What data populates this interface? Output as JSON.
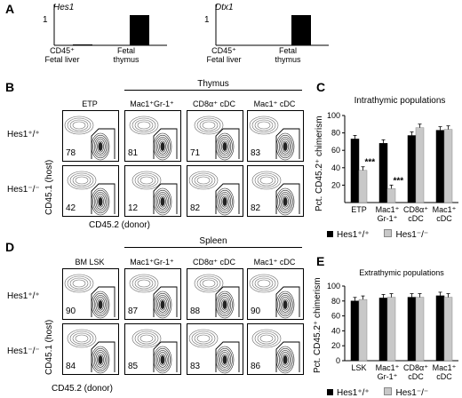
{
  "panels": {
    "A": "A",
    "B": "B",
    "C": "C",
    "D": "D",
    "E": "E"
  },
  "panel_a": {
    "charts": [
      {
        "gene": "Hes1",
        "ytick": "1",
        "bars": [
          {
            "label_line1": "CD45⁺",
            "label_line2": "Fetal liver",
            "value": 0.02
          },
          {
            "label_line1": "Fetal",
            "label_line2": "thymus",
            "value": 1.0
          }
        ]
      },
      {
        "gene": "Dtx1",
        "ytick": "1",
        "bars": [
          {
            "label_line1": "CD45⁺",
            "label_line2": "Fetal liver",
            "value": 0.0
          },
          {
            "label_line1": "Fetal",
            "label_line2": "thymus",
            "value": 1.0
          }
        ]
      }
    ]
  },
  "panel_b": {
    "tissue": "Thymus",
    "columns": [
      "ETP",
      "Mac1⁺Gr-1⁺",
      "CD8α⁺ cDC",
      "Mac1⁺ cDC"
    ],
    "rows": [
      "Hes1⁺/⁺",
      "Hes1⁻/⁻"
    ],
    "percents": [
      [
        "78",
        "81",
        "71",
        "83"
      ],
      [
        "42",
        "12",
        "82",
        "82"
      ]
    ],
    "y_axis": "CD45.1 (host)",
    "x_axis": "CD45.2 (donor)"
  },
  "panel_d": {
    "tissue": "Spleen",
    "columns": [
      "BM LSK",
      "Mac1⁺Gr-1⁺",
      "CD8α⁺ cDC",
      "Mac1⁺ cDC"
    ],
    "rows": [
      "Hes1⁺/⁺",
      "Hes1⁻/⁻"
    ],
    "percents": [
      [
        "90",
        "87",
        "88",
        "90"
      ],
      [
        "84",
        "85",
        "83",
        "86"
      ]
    ],
    "y_axis": "CD45.1 (host)",
    "x_axis": "CD45.2 (donor)"
  },
  "chart_data": [
    {
      "type": "bar",
      "title": "Intrathymic populations",
      "ylabel": "Pct. CD45.2⁺ chimerism",
      "ylim": [
        0,
        100
      ],
      "yticks": [
        20,
        40,
        60,
        80,
        100
      ],
      "categories": [
        "ETP",
        "Mac1⁺ Gr-1⁺",
        "CD8α⁺ cDC",
        "Mac1⁺ cDC"
      ],
      "series": [
        {
          "name": "Hes1⁺/⁺",
          "color": "#000000",
          "values": [
            73,
            68,
            77,
            83
          ]
        },
        {
          "name": "Hes1⁻/⁻",
          "color": "#c8c8c8",
          "values": [
            37,
            16,
            86,
            84
          ]
        }
      ],
      "annotations": [
        "***",
        "***"
      ],
      "legend": "bottom"
    },
    {
      "type": "bar",
      "title": "Extrathymic populations",
      "ylabel": "Pct. CD45.2⁺ chimerism",
      "ylim": [
        0,
        100
      ],
      "yticks": [
        0,
        20,
        40,
        60,
        80,
        100
      ],
      "categories": [
        "LSK",
        "Mac1⁺ Gr-1⁺",
        "CD8α⁺ cDC",
        "Mac1⁺ cDC"
      ],
      "series": [
        {
          "name": "Hes1⁺/⁺",
          "color": "#000000",
          "values": [
            80,
            84,
            85,
            87
          ]
        },
        {
          "name": "Hes1⁻/⁻",
          "color": "#c8c8c8",
          "values": [
            82,
            85,
            85,
            85
          ]
        }
      ],
      "legend": "bottom"
    }
  ]
}
